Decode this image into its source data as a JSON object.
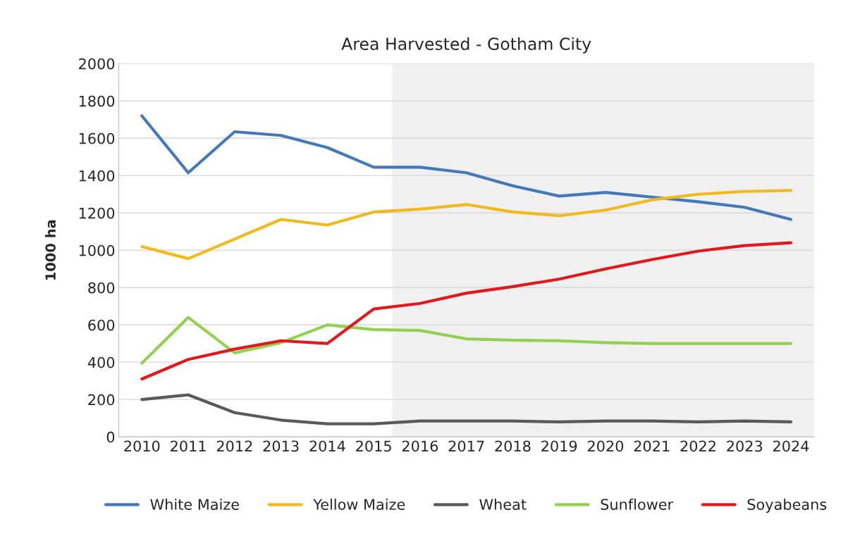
{
  "chart_data": {
    "type": "line",
    "title": "Area Harvested - Gotham City",
    "ylabel": "1000 ha",
    "x": [
      2010,
      2011,
      2012,
      2013,
      2014,
      2015,
      2016,
      2017,
      2018,
      2019,
      2020,
      2021,
      2022,
      2023,
      2024
    ],
    "xlim": [
      2009.5,
      2024.5
    ],
    "xticks": [
      2010,
      2011,
      2012,
      2013,
      2014,
      2015,
      2016,
      2017,
      2018,
      2019,
      2020,
      2021,
      2022,
      2023,
      2024
    ],
    "ylim": [
      0,
      2000
    ],
    "yticks": [
      0,
      200,
      400,
      600,
      800,
      1000,
      1200,
      1400,
      1600,
      1800,
      2000
    ],
    "grid": "y",
    "legend": "bottom",
    "marker": "none",
    "line_style": "solid",
    "bands": [
      {
        "axis": "x",
        "from": 2015.4,
        "to": 2024.5,
        "color": "#f0f0f0"
      }
    ],
    "series": [
      {
        "name": "White Maize",
        "color": "#4379b8",
        "values": [
          1720,
          1415,
          1635,
          1615,
          1550,
          1445,
          1445,
          1415,
          1345,
          1290,
          1310,
          1285,
          1260,
          1230,
          1165
        ]
      },
      {
        "name": "Yellow Maize",
        "color": "#f2b91c",
        "values": [
          1020,
          955,
          1060,
          1165,
          1135,
          1205,
          1220,
          1245,
          1205,
          1185,
          1215,
          1270,
          1300,
          1315,
          1320
        ]
      },
      {
        "name": "Wheat",
        "color": "#595959",
        "values": [
          200,
          225,
          130,
          90,
          70,
          70,
          85,
          85,
          85,
          80,
          85,
          85,
          80,
          85,
          80
        ]
      },
      {
        "name": "Sunflower",
        "color": "#92d050",
        "values": [
          395,
          640,
          450,
          505,
          600,
          575,
          570,
          525,
          518,
          515,
          505,
          500,
          500,
          500,
          500
        ]
      },
      {
        "name": "Soyabeans",
        "color": "#e2181c",
        "values": [
          310,
          415,
          470,
          515,
          500,
          685,
          715,
          770,
          805,
          845,
          900,
          950,
          995,
          1025,
          1040
        ]
      }
    ]
  }
}
